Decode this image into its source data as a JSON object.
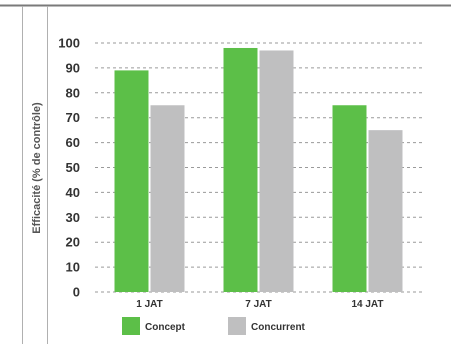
{
  "chart_data": {
    "type": "bar",
    "ylabel": "Efficacité (% de contrôle)",
    "xlabel": "",
    "ylim": [
      0,
      100
    ],
    "yticks": [
      0,
      10,
      20,
      30,
      40,
      50,
      60,
      70,
      80,
      90,
      100
    ],
    "categories": [
      "1 JAT",
      "7 JAT",
      "14 JAT"
    ],
    "series": [
      {
        "name": "Concept",
        "color": "#5cbf48",
        "values": [
          89,
          98,
          75
        ]
      },
      {
        "name": "Concurrent",
        "color": "#bfbfc0",
        "values": [
          75,
          97,
          65
        ]
      }
    ],
    "grid": true,
    "legend_position": "bottom"
  }
}
